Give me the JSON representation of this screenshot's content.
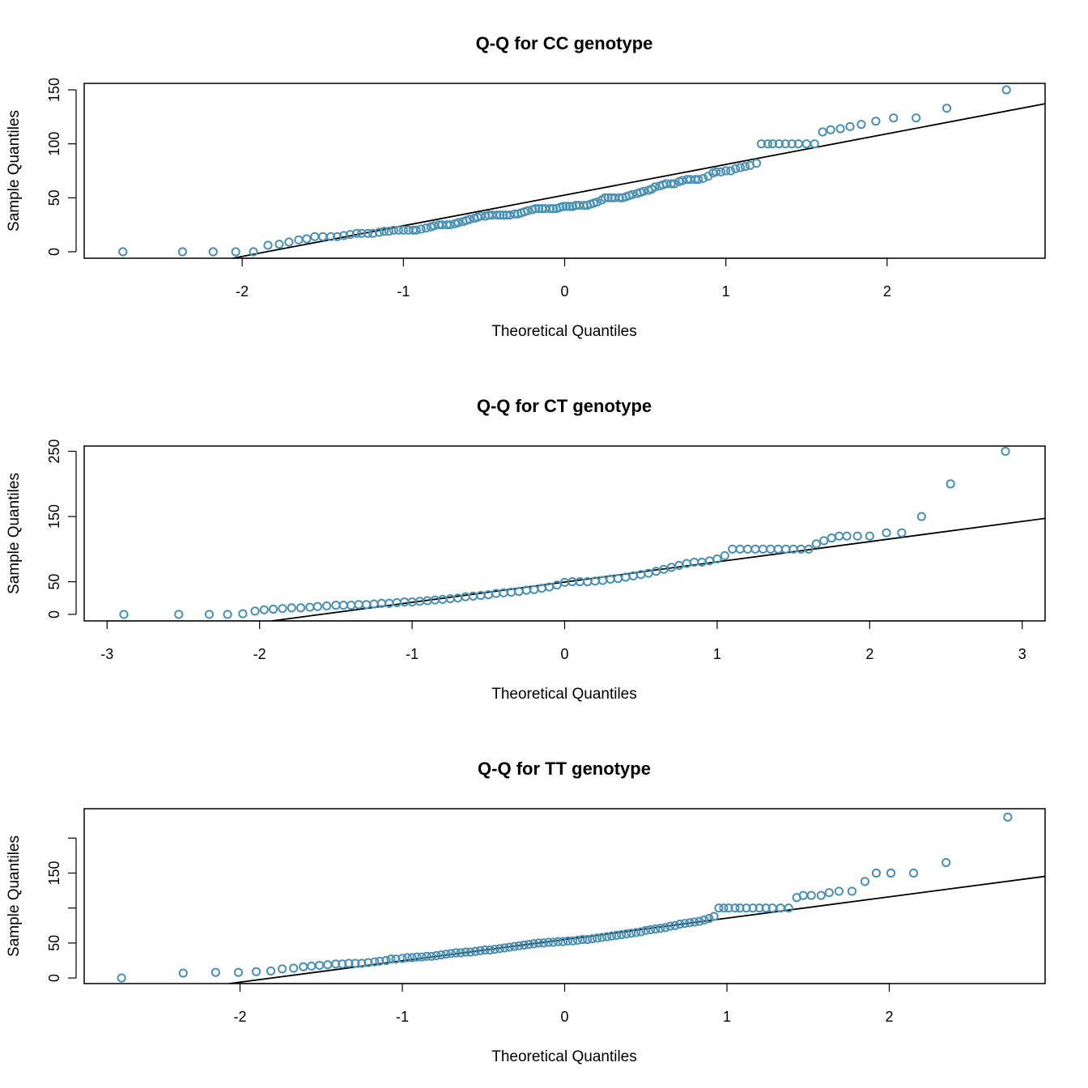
{
  "colors": {
    "point": "#4a90b5",
    "line": "#000000",
    "frame": "#000000",
    "background": "#ffffff"
  },
  "chart_data": [
    {
      "type": "scatter",
      "title": "Q-Q for CC genotype",
      "xlabel": "Theoretical Quantiles",
      "ylabel": "Sample Quantiles",
      "xlim": [
        -2.98,
        2.98
      ],
      "ylim": [
        -6,
        156
      ],
      "xticks": [
        -2,
        -1,
        0,
        1,
        2
      ],
      "xtick_labels": [
        "-2",
        "-1",
        "0",
        "1",
        "2"
      ],
      "yticks": [
        0,
        50,
        100,
        150
      ],
      "ytick_labels": [
        "0",
        "50",
        "100",
        "150"
      ],
      "reference_line": {
        "intercept": 52.5,
        "slope": 28.4
      },
      "points": [
        [
          -2.74,
          0
        ],
        [
          -2.37,
          0
        ],
        [
          -2.18,
          0
        ],
        [
          -2.04,
          0
        ],
        [
          -1.93,
          0
        ],
        [
          -1.84,
          6
        ],
        [
          -1.77,
          7
        ],
        [
          -1.71,
          9
        ],
        [
          -1.65,
          11
        ],
        [
          -1.6,
          12
        ],
        [
          -1.55,
          14
        ],
        [
          -1.5,
          14
        ],
        [
          -1.45,
          14
        ],
        [
          -1.41,
          14
        ],
        [
          -1.37,
          15
        ],
        [
          -1.33,
          16
        ],
        [
          -1.29,
          17
        ],
        [
          -1.26,
          17
        ],
        [
          -1.22,
          17
        ],
        [
          -1.19,
          17
        ],
        [
          -1.15,
          18
        ],
        [
          -1.12,
          19
        ],
        [
          -1.09,
          19
        ],
        [
          -1.06,
          20
        ],
        [
          -1.03,
          20
        ],
        [
          -1.0,
          20
        ],
        [
          -0.97,
          20
        ],
        [
          -0.94,
          20
        ],
        [
          -0.92,
          20
        ],
        [
          -0.89,
          21
        ],
        [
          -0.86,
          22
        ],
        [
          -0.83,
          23
        ],
        [
          -0.81,
          24
        ],
        [
          -0.78,
          25
        ],
        [
          -0.76,
          25
        ],
        [
          -0.73,
          25
        ],
        [
          -0.71,
          25
        ],
        [
          -0.68,
          26
        ],
        [
          -0.66,
          27
        ],
        [
          -0.63,
          28
        ],
        [
          -0.61,
          29
        ],
        [
          -0.59,
          30
        ],
        [
          -0.56,
          31
        ],
        [
          -0.54,
          32
        ],
        [
          -0.52,
          33
        ],
        [
          -0.49,
          33
        ],
        [
          -0.47,
          34
        ],
        [
          -0.45,
          34
        ],
        [
          -0.42,
          34
        ],
        [
          -0.4,
          34
        ],
        [
          -0.38,
          34
        ],
        [
          -0.36,
          34
        ],
        [
          -0.34,
          34
        ],
        [
          -0.31,
          35
        ],
        [
          -0.29,
          35
        ],
        [
          -0.27,
          36
        ],
        [
          -0.25,
          37
        ],
        [
          -0.23,
          38
        ],
        [
          -0.2,
          39
        ],
        [
          -0.18,
          40
        ],
        [
          -0.16,
          40
        ],
        [
          -0.14,
          40
        ],
        [
          -0.12,
          40
        ],
        [
          -0.09,
          40
        ],
        [
          -0.07,
          40
        ],
        [
          -0.05,
          40
        ],
        [
          -0.03,
          41
        ],
        [
          -0.01,
          42
        ],
        [
          0.01,
          42
        ],
        [
          0.03,
          42
        ],
        [
          0.05,
          42
        ],
        [
          0.07,
          43
        ],
        [
          0.09,
          43
        ],
        [
          0.12,
          43
        ],
        [
          0.14,
          43
        ],
        [
          0.16,
          44
        ],
        [
          0.18,
          45
        ],
        [
          0.2,
          46
        ],
        [
          0.23,
          48
        ],
        [
          0.25,
          50
        ],
        [
          0.27,
          50
        ],
        [
          0.29,
          50
        ],
        [
          0.31,
          50
        ],
        [
          0.34,
          50
        ],
        [
          0.36,
          50
        ],
        [
          0.38,
          51
        ],
        [
          0.4,
          52
        ],
        [
          0.42,
          53
        ],
        [
          0.45,
          54
        ],
        [
          0.47,
          55
        ],
        [
          0.49,
          56
        ],
        [
          0.52,
          57
        ],
        [
          0.54,
          58
        ],
        [
          0.56,
          60
        ],
        [
          0.59,
          61
        ],
        [
          0.61,
          62
        ],
        [
          0.63,
          63
        ],
        [
          0.66,
          63
        ],
        [
          0.68,
          63
        ],
        [
          0.71,
          65
        ],
        [
          0.73,
          66
        ],
        [
          0.76,
          67
        ],
        [
          0.78,
          67
        ],
        [
          0.81,
          67
        ],
        [
          0.83,
          67
        ],
        [
          0.86,
          68
        ],
        [
          0.89,
          70
        ],
        [
          0.92,
          73
        ],
        [
          0.94,
          74
        ],
        [
          0.97,
          74
        ],
        [
          1.0,
          75
        ],
        [
          1.03,
          75
        ],
        [
          1.06,
          77
        ],
        [
          1.09,
          78
        ],
        [
          1.12,
          79
        ],
        [
          1.15,
          80
        ],
        [
          1.19,
          82
        ],
        [
          1.22,
          100
        ],
        [
          1.26,
          100
        ],
        [
          1.29,
          100
        ],
        [
          1.33,
          100
        ],
        [
          1.37,
          100
        ],
        [
          1.41,
          100
        ],
        [
          1.45,
          100
        ],
        [
          1.5,
          100
        ],
        [
          1.55,
          100
        ],
        [
          1.6,
          111
        ],
        [
          1.65,
          113
        ],
        [
          1.71,
          114
        ],
        [
          1.77,
          116
        ],
        [
          1.84,
          118
        ],
        [
          1.93,
          121
        ],
        [
          2.04,
          124
        ],
        [
          2.18,
          124
        ],
        [
          2.37,
          133
        ],
        [
          2.74,
          150
        ]
      ]
    },
    {
      "type": "scatter",
      "title": "Q-Q for CT genotype",
      "xlabel": "Theoretical Quantiles",
      "ylabel": "Sample Quantiles",
      "xlim": [
        -3.15,
        3.15
      ],
      "ylim": [
        -10,
        258
      ],
      "xticks": [
        -3,
        -2,
        -1,
        0,
        1,
        2,
        3
      ],
      "xtick_labels": [
        "-3",
        "-2",
        "-1",
        "0",
        "1",
        "2",
        "3"
      ],
      "yticks": [
        0,
        50,
        150,
        250
      ],
      "ytick_labels": [
        "0",
        "50",
        "150",
        "250"
      ],
      "reference_line": {
        "intercept": 49.5,
        "slope": 31.0
      },
      "points": [
        [
          -2.89,
          0
        ],
        [
          -2.53,
          0
        ],
        [
          -2.33,
          0
        ],
        [
          -2.21,
          0
        ],
        [
          -2.11,
          1
        ],
        [
          -2.03,
          5
        ],
        [
          -1.97,
          7
        ],
        [
          -1.91,
          8
        ],
        [
          -1.85,
          9
        ],
        [
          -1.79,
          10
        ],
        [
          -1.73,
          10
        ],
        [
          -1.67,
          11
        ],
        [
          -1.62,
          12
        ],
        [
          -1.56,
          13
        ],
        [
          -1.5,
          14
        ],
        [
          -1.45,
          14
        ],
        [
          -1.4,
          14
        ],
        [
          -1.35,
          15
        ],
        [
          -1.3,
          15
        ],
        [
          -1.25,
          16
        ],
        [
          -1.2,
          17
        ],
        [
          -1.15,
          17
        ],
        [
          -1.1,
          18
        ],
        [
          -1.05,
          19
        ],
        [
          -1.0,
          19
        ],
        [
          -0.95,
          20
        ],
        [
          -0.9,
          21
        ],
        [
          -0.85,
          22
        ],
        [
          -0.8,
          23
        ],
        [
          -0.75,
          24
        ],
        [
          -0.7,
          25
        ],
        [
          -0.65,
          27
        ],
        [
          -0.6,
          28
        ],
        [
          -0.55,
          29
        ],
        [
          -0.5,
          30
        ],
        [
          -0.45,
          32
        ],
        [
          -0.4,
          33
        ],
        [
          -0.35,
          34
        ],
        [
          -0.3,
          35
        ],
        [
          -0.25,
          37
        ],
        [
          -0.2,
          38
        ],
        [
          -0.15,
          40
        ],
        [
          -0.1,
          42
        ],
        [
          -0.05,
          45
        ],
        [
          0.0,
          49
        ],
        [
          0.05,
          50
        ],
        [
          0.1,
          50
        ],
        [
          0.15,
          50
        ],
        [
          0.2,
          51
        ],
        [
          0.25,
          52
        ],
        [
          0.3,
          54
        ],
        [
          0.35,
          55
        ],
        [
          0.4,
          57
        ],
        [
          0.45,
          59
        ],
        [
          0.5,
          61
        ],
        [
          0.55,
          63
        ],
        [
          0.6,
          66
        ],
        [
          0.65,
          69
        ],
        [
          0.7,
          72
        ],
        [
          0.75,
          75
        ],
        [
          0.8,
          78
        ],
        [
          0.85,
          80
        ],
        [
          0.9,
          80
        ],
        [
          0.95,
          82
        ],
        [
          1.0,
          85
        ],
        [
          1.05,
          90
        ],
        [
          1.1,
          100
        ],
        [
          1.15,
          100
        ],
        [
          1.2,
          100
        ],
        [
          1.25,
          100
        ],
        [
          1.3,
          100
        ],
        [
          1.35,
          100
        ],
        [
          1.4,
          100
        ],
        [
          1.45,
          100
        ],
        [
          1.5,
          100
        ],
        [
          1.55,
          100
        ],
        [
          1.6,
          100
        ],
        [
          1.65,
          108
        ],
        [
          1.7,
          113
        ],
        [
          1.75,
          117
        ],
        [
          1.8,
          120
        ],
        [
          1.85,
          120
        ],
        [
          1.92,
          120
        ],
        [
          2.0,
          120
        ],
        [
          2.11,
          125
        ],
        [
          2.21,
          125
        ],
        [
          2.34,
          150
        ],
        [
          2.53,
          200
        ],
        [
          2.89,
          250
        ]
      ]
    },
    {
      "type": "scatter",
      "title": "Q-Q for TT genotype",
      "xlabel": "Theoretical Quantiles",
      "ylabel": "Sample Quantiles",
      "xlim": [
        -2.96,
        2.96
      ],
      "ylim": [
        -8,
        242
      ],
      "xticks": [
        -2,
        -1,
        0,
        1,
        2
      ],
      "xtick_labels": [
        "-2",
        "-1",
        "0",
        "1",
        "2"
      ],
      "yticks": [
        0,
        50,
        100,
        150,
        200
      ],
      "ytick_labels": [
        "0",
        "50",
        "",
        "150",
        ""
      ],
      "reference_line": {
        "intercept": 55.0,
        "slope": 30.5
      },
      "points": [
        [
          -2.73,
          0
        ],
        [
          -2.35,
          7
        ],
        [
          -2.15,
          8
        ],
        [
          -2.01,
          8
        ],
        [
          -1.9,
          9
        ],
        [
          -1.81,
          10
        ],
        [
          -1.74,
          13
        ],
        [
          -1.67,
          14
        ],
        [
          -1.61,
          16
        ],
        [
          -1.56,
          17
        ],
        [
          -1.51,
          18
        ],
        [
          -1.46,
          19
        ],
        [
          -1.41,
          20
        ],
        [
          -1.37,
          20
        ],
        [
          -1.33,
          21
        ],
        [
          -1.29,
          21
        ],
        [
          -1.25,
          21
        ],
        [
          -1.21,
          22
        ],
        [
          -1.17,
          23
        ],
        [
          -1.14,
          24
        ],
        [
          -1.1,
          25
        ],
        [
          -1.07,
          27
        ],
        [
          -1.04,
          27
        ],
        [
          -1.0,
          28
        ],
        [
          -0.97,
          29
        ],
        [
          -0.94,
          29
        ],
        [
          -0.91,
          30
        ],
        [
          -0.88,
          30
        ],
        [
          -0.85,
          31
        ],
        [
          -0.82,
          31
        ],
        [
          -0.79,
          32
        ],
        [
          -0.76,
          33
        ],
        [
          -0.73,
          34
        ],
        [
          -0.7,
          35
        ],
        [
          -0.67,
          36
        ],
        [
          -0.64,
          36
        ],
        [
          -0.61,
          37
        ],
        [
          -0.58,
          37
        ],
        [
          -0.55,
          38
        ],
        [
          -0.52,
          39
        ],
        [
          -0.49,
          40
        ],
        [
          -0.46,
          40
        ],
        [
          -0.43,
          41
        ],
        [
          -0.4,
          42
        ],
        [
          -0.37,
          43
        ],
        [
          -0.34,
          44
        ],
        [
          -0.31,
          45
        ],
        [
          -0.28,
          46
        ],
        [
          -0.25,
          47
        ],
        [
          -0.22,
          48
        ],
        [
          -0.19,
          49
        ],
        [
          -0.16,
          50
        ],
        [
          -0.13,
          50
        ],
        [
          -0.1,
          51
        ],
        [
          -0.07,
          51
        ],
        [
          -0.04,
          52
        ],
        [
          -0.01,
          52
        ],
        [
          0.02,
          53
        ],
        [
          0.05,
          53
        ],
        [
          0.08,
          54
        ],
        [
          0.11,
          55
        ],
        [
          0.14,
          55
        ],
        [
          0.17,
          56
        ],
        [
          0.2,
          57
        ],
        [
          0.23,
          58
        ],
        [
          0.26,
          59
        ],
        [
          0.29,
          60
        ],
        [
          0.32,
          61
        ],
        [
          0.35,
          62
        ],
        [
          0.38,
          63
        ],
        [
          0.41,
          64
        ],
        [
          0.44,
          65
        ],
        [
          0.47,
          66
        ],
        [
          0.5,
          68
        ],
        [
          0.53,
          69
        ],
        [
          0.56,
          70
        ],
        [
          0.59,
          71
        ],
        [
          0.62,
          72
        ],
        [
          0.65,
          74
        ],
        [
          0.68,
          75
        ],
        [
          0.71,
          77
        ],
        [
          0.74,
          78
        ],
        [
          0.77,
          79
        ],
        [
          0.8,
          80
        ],
        [
          0.83,
          81
        ],
        [
          0.86,
          83
        ],
        [
          0.89,
          85
        ],
        [
          0.92,
          88
        ],
        [
          0.95,
          100
        ],
        [
          0.98,
          100
        ],
        [
          1.01,
          100
        ],
        [
          1.05,
          100
        ],
        [
          1.08,
          100
        ],
        [
          1.12,
          100
        ],
        [
          1.16,
          100
        ],
        [
          1.2,
          100
        ],
        [
          1.24,
          100
        ],
        [
          1.28,
          100
        ],
        [
          1.33,
          100
        ],
        [
          1.38,
          100
        ],
        [
          1.43,
          115
        ],
        [
          1.47,
          118
        ],
        [
          1.52,
          118
        ],
        [
          1.58,
          118
        ],
        [
          1.63,
          122
        ],
        [
          1.69,
          124
        ],
        [
          1.77,
          124
        ],
        [
          1.85,
          138
        ],
        [
          1.92,
          150
        ],
        [
          2.01,
          150
        ],
        [
          2.15,
          150
        ],
        [
          2.35,
          165
        ],
        [
          2.73,
          230
        ]
      ]
    }
  ]
}
